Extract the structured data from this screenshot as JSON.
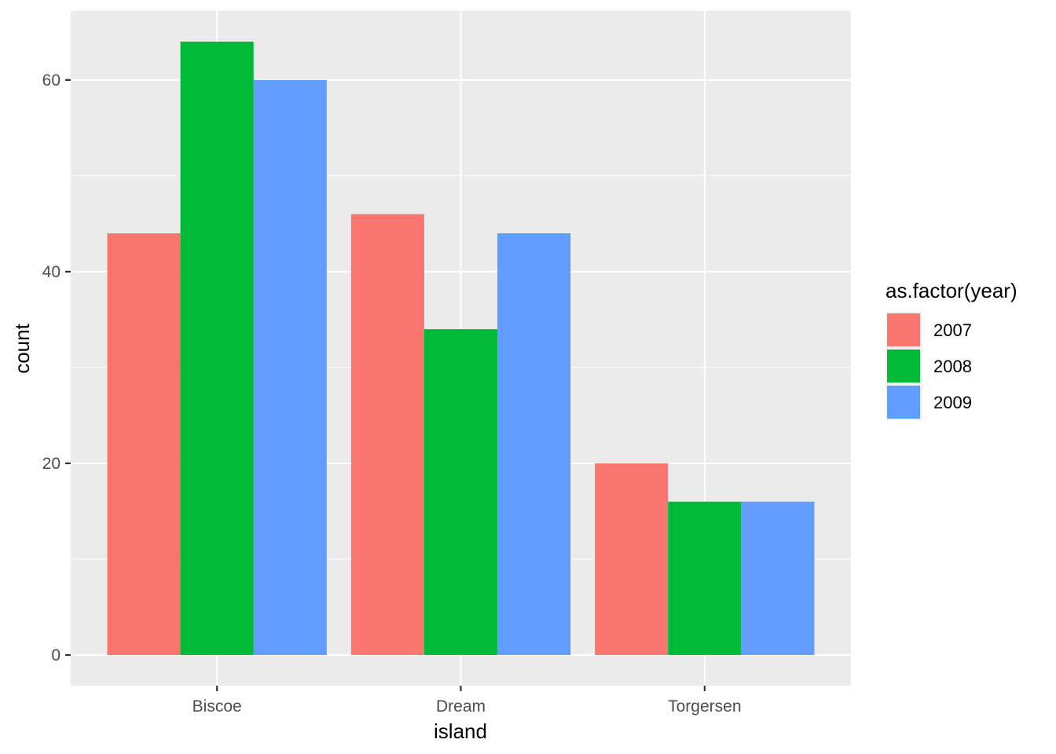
{
  "chart_data": {
    "type": "bar",
    "xlabel": "island",
    "ylabel": "count",
    "categories": [
      "Biscoe",
      "Dream",
      "Torgersen"
    ],
    "series": [
      {
        "name": "2007",
        "color": "#F8766D",
        "values": [
          44,
          46,
          20
        ]
      },
      {
        "name": "2008",
        "color": "#00BA38",
        "values": [
          64,
          34,
          16
        ]
      },
      {
        "name": "2009",
        "color": "#619CFF",
        "values": [
          60,
          44,
          16
        ]
      }
    ],
    "ylim": [
      -3.2,
      67.2
    ],
    "yticks": [
      0,
      20,
      40,
      60
    ],
    "ytick_labels": [
      "0",
      "20",
      "40",
      "60"
    ],
    "legend": {
      "title": "as.factor(year)",
      "position": "right"
    },
    "grid": true,
    "panel_color": "#EBEBEB"
  }
}
